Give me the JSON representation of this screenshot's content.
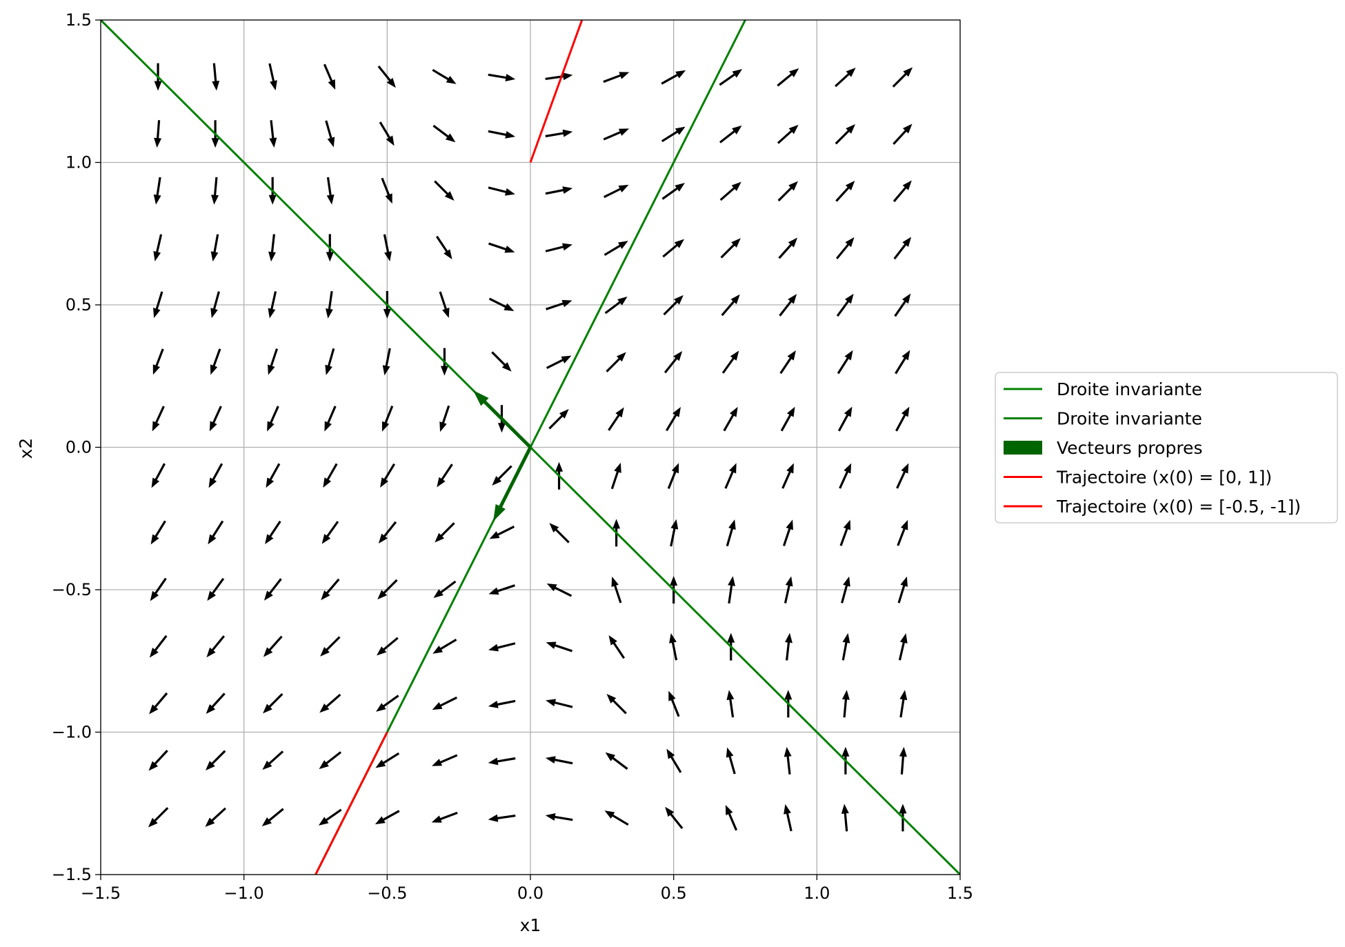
{
  "chart_data": {
    "type": "vector-field",
    "title": "",
    "xlabel": "x1",
    "ylabel": "x2",
    "xlim": [
      -1.5,
      1.5
    ],
    "ylim": [
      -1.5,
      1.5
    ],
    "xticks": [
      -1.5,
      -1.0,
      -0.5,
      0.0,
      0.5,
      1.0,
      1.5
    ],
    "yticks": [
      -1.5,
      -1.0,
      -0.5,
      0.0,
      0.5,
      1.0,
      1.5
    ],
    "xtick_labels": [
      "−1.5",
      "−1.0",
      "−0.5",
      "0.0",
      "0.5",
      "1.0",
      "1.5"
    ],
    "ytick_labels": [
      "−1.5",
      "−1.0",
      "−0.5",
      "0.0",
      "0.5",
      "1.0",
      "1.5"
    ],
    "grid": true,
    "legend_position": "outside-right",
    "quiver": {
      "x_start": -1.3,
      "x_step": 0.2,
      "count": 14,
      "y_start": -1.3,
      "y_step": 0.2,
      "field": {
        "a11": 1,
        "a12": 1,
        "a21": 2,
        "a22": 0
      },
      "color": "#000000"
    },
    "series": [
      {
        "name": "Droite invariante",
        "kind": "line",
        "color": "#008000",
        "x": [
          -1.5,
          1.5
        ],
        "y": [
          1.5,
          -1.5
        ]
      },
      {
        "name": "Droite invariante",
        "kind": "line",
        "color": "#008000",
        "x": [
          -0.75,
          0.75
        ],
        "y": [
          -1.5,
          1.5
        ]
      },
      {
        "name": "Vecteurs propres",
        "kind": "arrows",
        "color": "#006400",
        "vectors": [
          {
            "x0": 0,
            "y0": 0,
            "dx": -0.2,
            "dy": 0.2
          },
          {
            "x0": 0,
            "y0": 0,
            "dx": -0.13,
            "dy": -0.26
          }
        ]
      },
      {
        "name": "Trajectoire (x(0) = [0, 1])",
        "kind": "line",
        "color": "#ff0000",
        "x": [
          0,
          0.18
        ],
        "y": [
          1.0,
          1.5
        ]
      },
      {
        "name": "Trajectoire (x(0) = [-0.5, -1])",
        "kind": "line",
        "color": "#ff0000",
        "x": [
          -0.5,
          -0.75
        ],
        "y": [
          -1.0,
          -1.5
        ]
      }
    ]
  }
}
